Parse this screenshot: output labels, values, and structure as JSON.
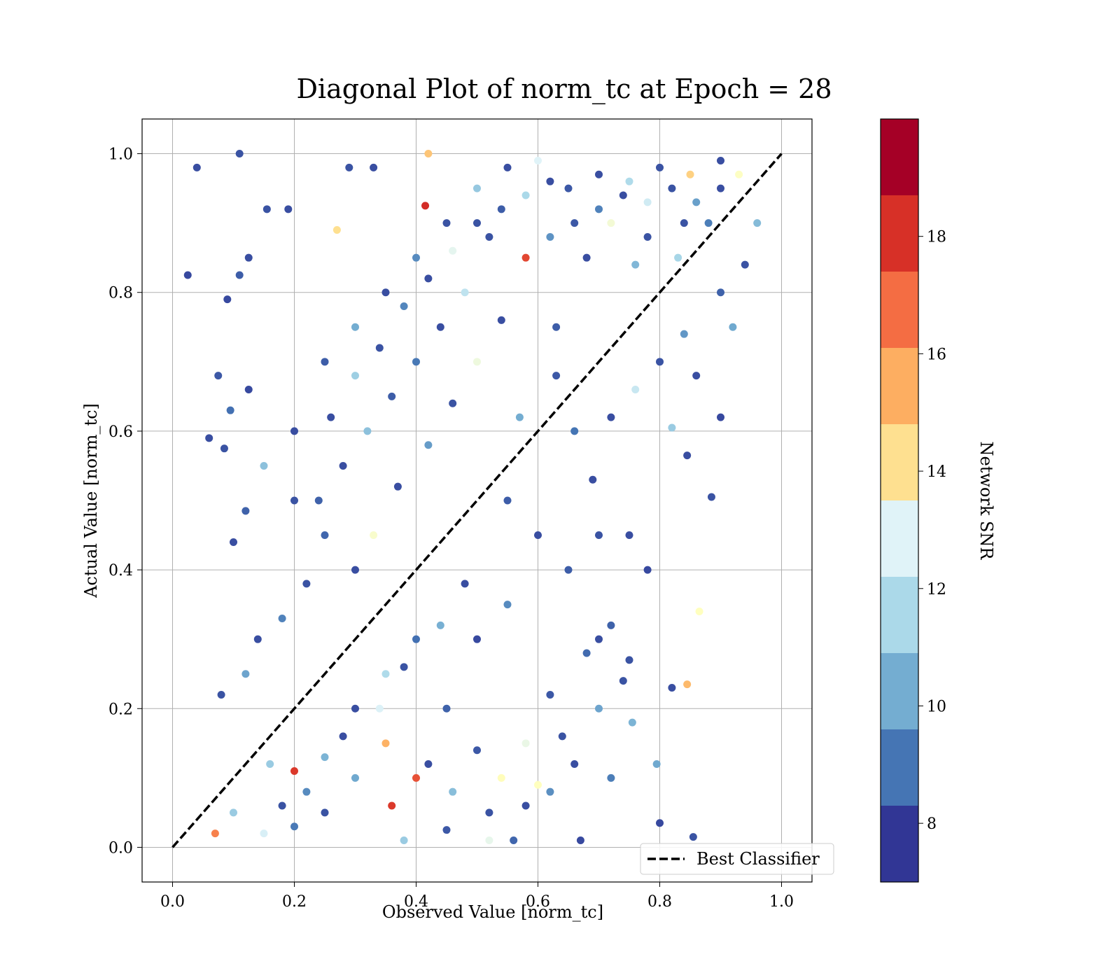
{
  "chart_data": {
    "type": "scatter",
    "title": "Diagonal Plot of norm_tc at Epoch = 28",
    "xlabel": "Observed Value [norm_tc]",
    "ylabel": "Actual Value [norm_tc]",
    "xlim": [
      -0.05,
      1.05
    ],
    "ylim": [
      -0.05,
      1.05
    ],
    "x_ticks": [
      "0.0",
      "0.2",
      "0.4",
      "0.6",
      "0.8",
      "1.0"
    ],
    "y_ticks": [
      "0.0",
      "0.2",
      "0.4",
      "0.6",
      "0.8",
      "1.0"
    ],
    "grid": true,
    "legend": {
      "placement": "lower-right",
      "entries": [
        {
          "label": "Best Classifier",
          "style": "dashed",
          "color": "#000000"
        }
      ]
    },
    "reference_line": {
      "x": [
        0,
        1
      ],
      "y": [
        0,
        1
      ],
      "label": "Best Classifier"
    },
    "colorbar": {
      "label": "Network SNR",
      "range": [
        7,
        20
      ],
      "ticks": [
        "8",
        "10",
        "12",
        "14",
        "16",
        "18"
      ],
      "colors": [
        "#313695",
        "#4575b4",
        "#74add1",
        "#abd9e9",
        "#e0f3f8",
        "#ffffbf",
        "#fee090",
        "#fdae61",
        "#f46d43",
        "#d73027",
        "#a50026"
      ],
      "bands": [
        "#a50026",
        "#d73027",
        "#f46d43",
        "#fdae61",
        "#fee090",
        "#e0f3f8",
        "#abd9e9",
        "#74add1",
        "#4575b4",
        "#313695"
      ]
    },
    "points": [
      [
        0.04,
        0.98,
        7.5
      ],
      [
        0.11,
        1.0,
        7.6
      ],
      [
        0.025,
        0.825,
        7.4
      ],
      [
        0.11,
        0.825,
        7.8
      ],
      [
        0.125,
        0.85,
        7.5
      ],
      [
        0.155,
        0.92,
        7.6
      ],
      [
        0.19,
        0.92,
        7.5
      ],
      [
        0.09,
        0.79,
        7.4
      ],
      [
        0.075,
        0.68,
        7.7
      ],
      [
        0.06,
        0.59,
        7.5
      ],
      [
        0.085,
        0.575,
        7.6
      ],
      [
        0.095,
        0.63,
        8.2
      ],
      [
        0.1,
        0.44,
        7.5
      ],
      [
        0.12,
        0.485,
        7.9
      ],
      [
        0.125,
        0.66,
        7.4
      ],
      [
        0.29,
        0.98,
        7.6
      ],
      [
        0.33,
        0.98,
        7.5
      ],
      [
        0.42,
        1.0,
        15.5
      ],
      [
        0.27,
        0.89,
        14.8
      ],
      [
        0.415,
        0.925,
        18.8
      ],
      [
        0.63,
        0.75,
        7.8
      ],
      [
        0.69,
        0.53,
        7.5
      ],
      [
        0.885,
        0.505,
        7.6
      ],
      [
        0.92,
        0.75,
        9.5
      ],
      [
        0.9,
        0.62,
        7.4
      ],
      [
        0.845,
        0.565,
        7.5
      ],
      [
        0.82,
        0.605,
        10.5
      ],
      [
        0.865,
        0.34,
        13.5
      ],
      [
        0.82,
        0.23,
        7.5
      ],
      [
        0.845,
        0.235,
        15.8
      ],
      [
        0.855,
        0.015,
        7.6
      ],
      [
        0.8,
        0.035,
        7.4
      ],
      [
        0.795,
        0.12,
        9.5
      ],
      [
        0.755,
        0.18,
        9.8
      ],
      [
        0.7,
        0.3,
        7.5
      ],
      [
        0.75,
        0.27,
        7.6
      ],
      [
        0.72,
        0.1,
        8.5
      ],
      [
        0.67,
        0.01,
        7.4
      ],
      [
        0.6,
        0.09,
        13.5
      ],
      [
        0.56,
        0.01,
        8.0
      ],
      [
        0.52,
        0.05,
        7.6
      ],
      [
        0.52,
        0.01,
        12.5
      ],
      [
        0.36,
        0.06,
        18.5
      ],
      [
        0.38,
        0.01,
        10.5
      ],
      [
        0.45,
        0.025,
        7.7
      ],
      [
        0.4,
        0.1,
        18.0
      ],
      [
        0.35,
        0.15,
        16.0
      ],
      [
        0.3,
        0.1,
        9.5
      ],
      [
        0.25,
        0.05,
        7.6
      ],
      [
        0.2,
        0.03,
        8.4
      ],
      [
        0.15,
        0.02,
        12.0
      ],
      [
        0.1,
        0.05,
        10.5
      ],
      [
        0.07,
        0.02,
        17.0
      ],
      [
        0.2,
        0.11,
        18.5
      ],
      [
        0.25,
        0.13,
        9.8
      ],
      [
        0.3,
        0.2,
        7.5
      ],
      [
        0.35,
        0.25,
        11.0
      ],
      [
        0.4,
        0.3,
        8.2
      ],
      [
        0.45,
        0.2,
        7.9
      ],
      [
        0.5,
        0.3,
        7.4
      ],
      [
        0.55,
        0.35,
        8.8
      ],
      [
        0.6,
        0.45,
        7.5
      ],
      [
        0.65,
        0.4,
        7.8
      ],
      [
        0.7,
        0.45,
        7.6
      ],
      [
        0.75,
        0.45,
        7.5
      ],
      [
        0.78,
        0.4,
        7.4
      ],
      [
        0.72,
        0.32,
        7.9
      ],
      [
        0.68,
        0.28,
        8.1
      ],
      [
        0.62,
        0.22,
        7.7
      ],
      [
        0.58,
        0.15,
        12.6
      ],
      [
        0.3,
        0.4,
        7.5
      ],
      [
        0.25,
        0.45,
        8.0
      ],
      [
        0.2,
        0.5,
        7.6
      ],
      [
        0.15,
        0.55,
        10.2
      ],
      [
        0.2,
        0.6,
        7.5
      ],
      [
        0.25,
        0.7,
        7.8
      ],
      [
        0.3,
        0.75,
        9.6
      ],
      [
        0.35,
        0.8,
        7.5
      ],
      [
        0.4,
        0.85,
        8.8
      ],
      [
        0.45,
        0.9,
        7.6
      ],
      [
        0.5,
        0.95,
        10.4
      ],
      [
        0.55,
        0.98,
        7.5
      ],
      [
        0.6,
        0.99,
        12.2
      ],
      [
        0.65,
        0.95,
        7.7
      ],
      [
        0.7,
        0.97,
        7.5
      ],
      [
        0.75,
        0.96,
        11.0
      ],
      [
        0.8,
        0.98,
        7.6
      ],
      [
        0.85,
        0.97,
        15.2
      ],
      [
        0.9,
        0.99,
        7.5
      ],
      [
        0.88,
        0.9,
        8.5
      ],
      [
        0.83,
        0.85,
        10.8
      ],
      [
        0.78,
        0.88,
        7.6
      ],
      [
        0.72,
        0.9,
        13.0
      ],
      [
        0.68,
        0.85,
        7.5
      ],
      [
        0.62,
        0.88,
        9.0
      ],
      [
        0.58,
        0.85,
        18.2
      ],
      [
        0.52,
        0.88,
        7.6
      ],
      [
        0.48,
        0.8,
        11.4
      ],
      [
        0.44,
        0.75,
        7.5
      ],
      [
        0.4,
        0.7,
        8.4
      ],
      [
        0.36,
        0.65,
        7.8
      ],
      [
        0.32,
        0.6,
        10.2
      ],
      [
        0.28,
        0.55,
        7.5
      ],
      [
        0.24,
        0.5,
        7.9
      ],
      [
        0.22,
        0.38,
        7.6
      ],
      [
        0.18,
        0.33,
        8.6
      ],
      [
        0.14,
        0.3,
        7.5
      ],
      [
        0.12,
        0.25,
        9.4
      ],
      [
        0.08,
        0.22,
        7.6
      ],
      [
        0.16,
        0.12,
        10.5
      ],
      [
        0.33,
        0.45,
        13.2
      ],
      [
        0.37,
        0.52,
        7.5
      ],
      [
        0.42,
        0.58,
        9.2
      ],
      [
        0.46,
        0.64,
        7.6
      ],
      [
        0.5,
        0.7,
        12.8
      ],
      [
        0.54,
        0.76,
        7.5
      ],
      [
        0.57,
        0.62,
        9.6
      ],
      [
        0.63,
        0.68,
        7.7
      ],
      [
        0.66,
        0.6,
        8.3
      ],
      [
        0.72,
        0.62,
        7.5
      ],
      [
        0.76,
        0.66,
        11.6
      ],
      [
        0.8,
        0.7,
        7.6
      ],
      [
        0.84,
        0.74,
        9.1
      ],
      [
        0.86,
        0.68,
        7.5
      ],
      [
        0.9,
        0.8,
        7.9
      ],
      [
        0.94,
        0.84,
        7.6
      ],
      [
        0.96,
        0.9,
        10.0
      ],
      [
        0.55,
        0.5,
        7.8
      ],
      [
        0.48,
        0.38,
        7.5
      ],
      [
        0.44,
        0.32,
        9.7
      ],
      [
        0.38,
        0.26,
        7.6
      ],
      [
        0.34,
        0.2,
        12.1
      ],
      [
        0.28,
        0.16,
        7.5
      ],
      [
        0.22,
        0.08,
        8.8
      ],
      [
        0.18,
        0.06,
        7.6
      ],
      [
        0.42,
        0.12,
        7.5
      ],
      [
        0.46,
        0.08,
        10.1
      ],
      [
        0.5,
        0.14,
        7.7
      ],
      [
        0.54,
        0.1,
        13.6
      ],
      [
        0.58,
        0.06,
        7.5
      ],
      [
        0.62,
        0.08,
        8.9
      ],
      [
        0.64,
        0.16,
        7.6
      ],
      [
        0.66,
        0.12,
        7.5
      ],
      [
        0.7,
        0.2,
        9.4
      ],
      [
        0.74,
        0.24,
        7.6
      ],
      [
        0.26,
        0.62,
        7.5
      ],
      [
        0.3,
        0.68,
        10.6
      ],
      [
        0.34,
        0.72,
        7.6
      ],
      [
        0.38,
        0.78,
        8.7
      ],
      [
        0.42,
        0.82,
        7.5
      ],
      [
        0.46,
        0.86,
        12.4
      ],
      [
        0.5,
        0.9,
        7.6
      ],
      [
        0.54,
        0.92,
        7.8
      ],
      [
        0.58,
        0.94,
        10.9
      ],
      [
        0.62,
        0.96,
        7.5
      ],
      [
        0.66,
        0.9,
        7.7
      ],
      [
        0.7,
        0.92,
        8.6
      ],
      [
        0.74,
        0.94,
        7.5
      ],
      [
        0.78,
        0.93,
        11.8
      ],
      [
        0.82,
        0.95,
        7.6
      ],
      [
        0.86,
        0.93,
        9.3
      ],
      [
        0.9,
        0.95,
        7.5
      ],
      [
        0.93,
        0.97,
        13.4
      ],
      [
        0.84,
        0.9,
        7.6
      ],
      [
        0.76,
        0.84,
        9.9
      ]
    ]
  }
}
